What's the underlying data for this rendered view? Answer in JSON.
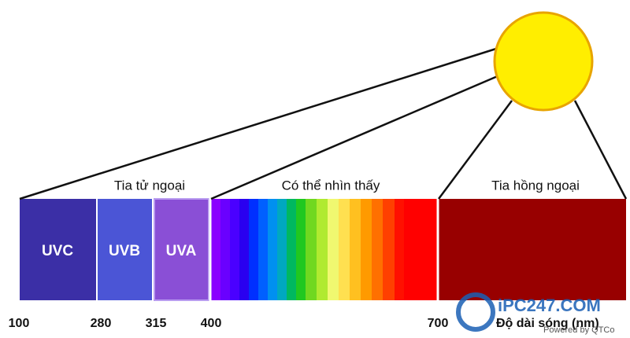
{
  "regions": [
    {
      "label": "Tia tử ngoại"
    },
    {
      "label": "Có thể nhìn thấy"
    },
    {
      "label": "Tia hồng ngoại"
    }
  ],
  "bands": [
    "UVC",
    "UVB",
    "UVA"
  ],
  "ticks": [
    100,
    280,
    315,
    400,
    700
  ],
  "axis_label": "Độ dài sóng (nm)",
  "watermark": {
    "brand": "iPC247.COM",
    "credit": "Powered by QTCo"
  }
}
